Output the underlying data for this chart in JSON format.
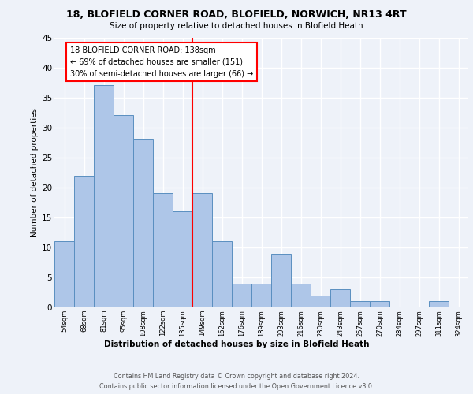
{
  "title1": "18, BLOFIELD CORNER ROAD, BLOFIELD, NORWICH, NR13 4RT",
  "title2": "Size of property relative to detached houses in Blofield Heath",
  "xlabel": "Distribution of detached houses by size in Blofield Heath",
  "ylabel": "Number of detached properties",
  "categories": [
    "54sqm",
    "68sqm",
    "81sqm",
    "95sqm",
    "108sqm",
    "122sqm",
    "135sqm",
    "149sqm",
    "162sqm",
    "176sqm",
    "189sqm",
    "203sqm",
    "216sqm",
    "230sqm",
    "243sqm",
    "257sqm",
    "270sqm",
    "284sqm",
    "297sqm",
    "311sqm",
    "324sqm"
  ],
  "values": [
    11,
    22,
    37,
    32,
    28,
    19,
    16,
    19,
    11,
    4,
    4,
    9,
    4,
    2,
    3,
    1,
    1,
    0,
    0,
    1,
    0
  ],
  "bar_color": "#aec6e8",
  "bar_edge_color": "#5a8fc0",
  "vline_x": 6.5,
  "vline_color": "red",
  "annotation_text": "18 BLOFIELD CORNER ROAD: 138sqm\n← 69% of detached houses are smaller (151)\n30% of semi-detached houses are larger (66) →",
  "annotation_box_color": "white",
  "annotation_box_edge_color": "red",
  "ylim": [
    0,
    45
  ],
  "yticks": [
    0,
    5,
    10,
    15,
    20,
    25,
    30,
    35,
    40,
    45
  ],
  "footer": "Contains HM Land Registry data © Crown copyright and database right 2024.\nContains public sector information licensed under the Open Government Licence v3.0.",
  "background_color": "#eef2f9",
  "grid_color": "white"
}
